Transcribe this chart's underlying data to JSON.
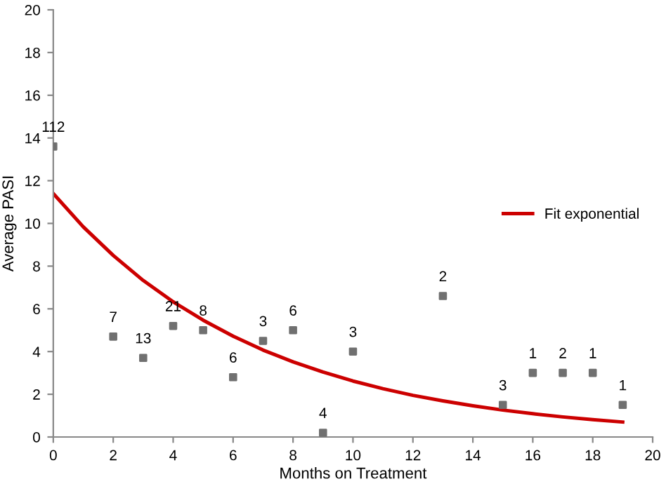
{
  "chart_data": {
    "type": "scatter",
    "xlabel": "Months on Treatment",
    "ylabel": "Average PASI",
    "xlim": [
      0,
      20
    ],
    "ylim": [
      0,
      20
    ],
    "xticks": [
      0,
      2,
      4,
      6,
      8,
      10,
      12,
      14,
      16,
      18,
      20
    ],
    "yticks": [
      0,
      2,
      4,
      6,
      8,
      10,
      12,
      14,
      16,
      18,
      20
    ],
    "grid": false,
    "legend": "right",
    "series": [
      {
        "color": "#707070",
        "marker": "square",
        "x": [
          0,
          2,
          3,
          4,
          5,
          6,
          7,
          8,
          9,
          10,
          13,
          15,
          16,
          17,
          18,
          19
        ],
        "values": [
          13.6,
          4.7,
          3.7,
          5.2,
          5.0,
          2.8,
          4.5,
          5.0,
          0.2,
          4.0,
          6.6,
          1.5,
          3.0,
          3.0,
          3.0,
          1.5
        ]
      },
      {
        "type": "line",
        "name": "Fit exponential",
        "color": "#cc0000",
        "line_style": "solid",
        "marker": "none",
        "x": [
          0,
          1,
          2,
          3,
          4,
          5,
          6,
          7,
          8,
          9,
          10,
          11,
          12,
          13,
          14,
          15,
          16,
          17,
          18,
          19
        ],
        "values": [
          11.4,
          9.84,
          8.5,
          7.33,
          6.33,
          5.47,
          4.72,
          4.07,
          3.52,
          3.04,
          2.62,
          2.26,
          1.95,
          1.69,
          1.46,
          1.26,
          1.09,
          0.94,
          0.81,
          0.7
        ]
      }
    ],
    "annotations": [
      {
        "text": "112",
        "x": 0,
        "y": 13.6
      },
      {
        "text": "7",
        "x": 2,
        "y": 4.7
      },
      {
        "text": "13",
        "x": 3,
        "y": 3.7
      },
      {
        "text": "21",
        "x": 4,
        "y": 5.2
      },
      {
        "text": "8",
        "x": 5,
        "y": 5.0
      },
      {
        "text": "6",
        "x": 6,
        "y": 2.8
      },
      {
        "text": "3",
        "x": 7,
        "y": 4.5
      },
      {
        "text": "6",
        "x": 8,
        "y": 5.0
      },
      {
        "text": "4",
        "x": 9,
        "y": 0.2
      },
      {
        "text": "3",
        "x": 10,
        "y": 4.0
      },
      {
        "text": "2",
        "x": 13,
        "y": 6.6
      },
      {
        "text": "3",
        "x": 15,
        "y": 1.5
      },
      {
        "text": "1",
        "x": 16,
        "y": 3.0
      },
      {
        "text": "2",
        "x": 17,
        "y": 3.0
      },
      {
        "text": "1",
        "x": 18,
        "y": 3.0
      },
      {
        "text": "1",
        "x": 19,
        "y": 1.5
      }
    ]
  }
}
